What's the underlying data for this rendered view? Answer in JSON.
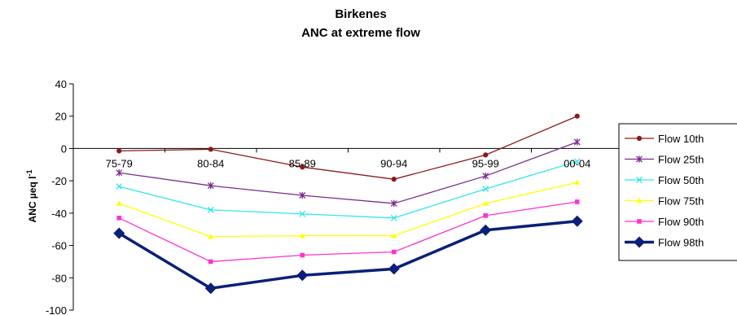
{
  "chart_data": {
    "type": "line",
    "title": "Birkenes",
    "subtitle": "ANC at extreme flow",
    "ylabel": "ANC µeq l",
    "ylabel_superscript": "-1",
    "xlabel": "",
    "categories": [
      "75-79",
      "80-84",
      "85-89",
      "90-94",
      "95-99",
      "00-04"
    ],
    "ylim": [
      -100,
      40
    ],
    "yticks": [
      40,
      20,
      0,
      -20,
      -40,
      -60,
      -80,
      -100
    ],
    "grid": false,
    "legend_position": "right",
    "series": [
      {
        "name": "Flow 10th",
        "values": [
          -1.5,
          -0.5,
          -11.5,
          -19,
          -4,
          20
        ],
        "color": "#8B1A1A",
        "marker": "circle"
      },
      {
        "name": "Flow 25th",
        "values": [
          -15,
          -23,
          -29,
          -34,
          -17,
          4
        ],
        "color": "#7B2C8C",
        "marker": "asterisk"
      },
      {
        "name": "Flow 50th",
        "values": [
          -23.5,
          -38,
          -40.5,
          -43,
          -25,
          -8
        ],
        "color": "#33E6E6",
        "marker": "x"
      },
      {
        "name": "Flow 75th",
        "values": [
          -34,
          -54.5,
          -54,
          -54,
          -34,
          -21
        ],
        "color": "#FFFF00",
        "marker": "triangle"
      },
      {
        "name": "Flow 90th",
        "values": [
          -43,
          -70,
          -66,
          -64,
          -41.5,
          -33
        ],
        "color": "#FF33CC",
        "marker": "square"
      },
      {
        "name": "Flow 98th",
        "values": [
          -52.5,
          -86.5,
          -78.5,
          -74.5,
          -50.5,
          -45
        ],
        "color": "#0A1F78",
        "marker": "diamond"
      }
    ]
  }
}
